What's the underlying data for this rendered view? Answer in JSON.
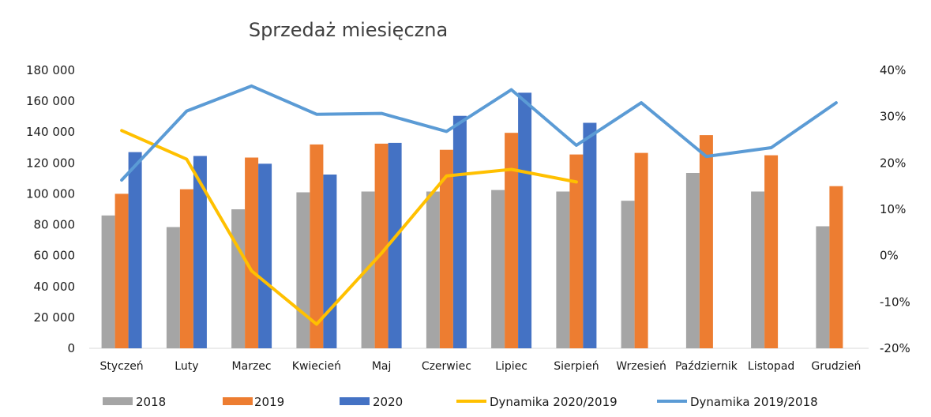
{
  "chart_data": {
    "type": "bar",
    "title": "Sprzedaż miesięczna",
    "categories": [
      "Styczeń",
      "Luty",
      "Marzec",
      "Kwiecień",
      "Maj",
      "Czerwiec",
      "Lipiec",
      "Sierpień",
      "Wrzesień",
      "Październik",
      "Listopad",
      "Grudzień"
    ],
    "series": [
      {
        "name": "2018",
        "kind": "bar",
        "axis": "left",
        "color": "#a5a5a5",
        "values": [
          86000,
          78500,
          90000,
          101000,
          101500,
          101500,
          102500,
          101500,
          95500,
          113500,
          101500,
          79000
        ]
      },
      {
        "name": "2019",
        "kind": "bar",
        "axis": "left",
        "color": "#ed7d31",
        "values": [
          100000,
          103000,
          123500,
          132000,
          132500,
          128500,
          139500,
          125500,
          126500,
          138000,
          125000,
          105000
        ]
      },
      {
        "name": "2020",
        "kind": "bar",
        "axis": "left",
        "color": "#4472c4",
        "values": [
          127000,
          124500,
          119500,
          112500,
          133000,
          150500,
          165500,
          146000,
          null,
          null,
          null,
          null
        ]
      },
      {
        "name": "Dynamika 2020/2019",
        "kind": "line",
        "axis": "right",
        "color": "#ffc000",
        "values": [
          27,
          20.8,
          -3.3,
          -14.8,
          0.5,
          17.2,
          18.6,
          15.9,
          null,
          null,
          null,
          null
        ]
      },
      {
        "name": "Dynamika 2019/2018",
        "kind": "line",
        "axis": "right",
        "color": "#5b9bd5",
        "values": [
          16.3,
          31.2,
          36.6,
          30.5,
          30.7,
          26.8,
          35.8,
          23.8,
          33,
          21.4,
          23.3,
          33
        ]
      }
    ],
    "y_left": {
      "min": 0,
      "max": 180000,
      "step": 20000,
      "ticks": [
        "0",
        "20 000",
        "40 000",
        "60 000",
        "80 000",
        "100 000",
        "120 000",
        "140 000",
        "160 000",
        "180 000"
      ]
    },
    "y_right": {
      "min": -20,
      "max": 40,
      "step": 10,
      "ticks": [
        "-20%",
        "-10%",
        "0%",
        "10%",
        "20%",
        "30%",
        "40%"
      ]
    },
    "grid": false,
    "legend": "bottom"
  }
}
